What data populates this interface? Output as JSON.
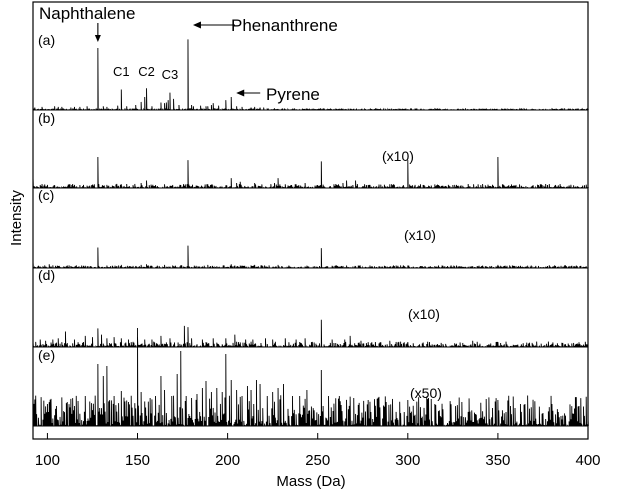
{
  "chart_data": {
    "type": "line",
    "xlabel": "Mass (Da)",
    "ylabel": "Intensity",
    "xlim": [
      92,
      400
    ],
    "x_ticks": [
      100,
      150,
      200,
      250,
      300,
      350,
      400
    ],
    "x_tick_labels": [
      "100",
      "150",
      "200",
      "250",
      "300",
      "350",
      "400"
    ],
    "grid": false,
    "legend": "none",
    "panels": [
      {
        "label": "(a)",
        "scale_label": "",
        "noise": 0.012,
        "peaks": [
          [
            93,
            0.04
          ],
          [
            97,
            0.05
          ],
          [
            104,
            0.06
          ],
          [
            106,
            0.05
          ],
          [
            108,
            0.05
          ],
          [
            113,
            0.04
          ],
          [
            115,
            0.05
          ],
          [
            118,
            0.05
          ],
          [
            122,
            0.06
          ],
          [
            128,
            1.0
          ],
          [
            131,
            0.06
          ],
          [
            133,
            0.05
          ],
          [
            139,
            0.07
          ],
          [
            141,
            0.33
          ],
          [
            144,
            0.06
          ],
          [
            149,
            0.08
          ],
          [
            152,
            0.13
          ],
          [
            154,
            0.21
          ],
          [
            155,
            0.35
          ],
          [
            158,
            0.06
          ],
          [
            163,
            0.12
          ],
          [
            165,
            0.11
          ],
          [
            166,
            0.12
          ],
          [
            167,
            0.16
          ],
          [
            168,
            0.28
          ],
          [
            170,
            0.18
          ],
          [
            173,
            0.08
          ],
          [
            178,
            1.14
          ],
          [
            180,
            0.08
          ],
          [
            181,
            0.06
          ],
          [
            185,
            0.07
          ],
          [
            188,
            0.06
          ],
          [
            189,
            0.06
          ],
          [
            191,
            0.08
          ],
          [
            192,
            0.11
          ],
          [
            195,
            0.07
          ],
          [
            199,
            0.16
          ],
          [
            202,
            0.21
          ],
          [
            205,
            0.06
          ],
          [
            208,
            0.05
          ],
          [
            213,
            0.04
          ],
          [
            215,
            0.05
          ],
          [
            218,
            0.04
          ],
          [
            220,
            0.04
          ]
        ]
      },
      {
        "label": "(b)",
        "scale_label": "(x10)",
        "noise": 0.03,
        "peaks": [
          [
            92,
            0.18
          ],
          [
            100,
            0.05
          ],
          [
            112,
            0.06
          ],
          [
            115,
            0.05
          ],
          [
            120,
            0.05
          ],
          [
            128,
            0.5
          ],
          [
            133,
            0.05
          ],
          [
            141,
            0.06
          ],
          [
            152,
            0.08
          ],
          [
            155,
            0.12
          ],
          [
            165,
            0.06
          ],
          [
            178,
            0.45
          ],
          [
            189,
            0.06
          ],
          [
            202,
            0.16
          ],
          [
            205,
            0.08
          ],
          [
            207,
            0.1
          ],
          [
            215,
            0.08
          ],
          [
            226,
            0.08
          ],
          [
            228,
            0.16
          ],
          [
            232,
            0.06
          ],
          [
            238,
            0.06
          ],
          [
            243,
            0.08
          ],
          [
            252,
            0.43
          ],
          [
            259,
            0.06
          ],
          [
            264,
            0.08
          ],
          [
            266,
            0.12
          ],
          [
            271,
            0.12
          ],
          [
            276,
            0.06
          ],
          [
            279,
            0.05
          ],
          [
            290,
            0.06
          ],
          [
            300,
            0.45
          ],
          [
            313,
            0.04
          ],
          [
            326,
            0.05
          ],
          [
            350,
            0.5
          ]
        ]
      },
      {
        "label": "(c)",
        "scale_label": "(x10)",
        "noise": 0.02,
        "peaks": [
          [
            92,
            0.1
          ],
          [
            101,
            0.06
          ],
          [
            111,
            0.04
          ],
          [
            119,
            0.04
          ],
          [
            128,
            0.33
          ],
          [
            133,
            0.04
          ],
          [
            141,
            0.05
          ],
          [
            152,
            0.05
          ],
          [
            155,
            0.06
          ],
          [
            165,
            0.05
          ],
          [
            178,
            0.36
          ],
          [
            189,
            0.05
          ],
          [
            202,
            0.06
          ],
          [
            207,
            0.04
          ],
          [
            215,
            0.05
          ],
          [
            228,
            0.05
          ],
          [
            234,
            0.04
          ],
          [
            252,
            0.32
          ],
          [
            266,
            0.04
          ],
          [
            279,
            0.04
          ],
          [
            300,
            0.04
          ],
          [
            327,
            0.04
          ],
          [
            350,
            0.05
          ]
        ]
      },
      {
        "label": "(d)",
        "scale_label": "(x10)",
        "noise": 0.04,
        "peaks": [
          [
            92,
            0.08
          ],
          [
            96,
            0.12
          ],
          [
            99,
            0.1
          ],
          [
            103,
            0.12
          ],
          [
            106,
            0.14
          ],
          [
            110,
            0.25
          ],
          [
            115,
            0.12
          ],
          [
            121,
            0.18
          ],
          [
            125,
            0.16
          ],
          [
            128,
            0.3
          ],
          [
            130,
            0.2
          ],
          [
            133,
            0.14
          ],
          [
            137,
            0.16
          ],
          [
            141,
            0.14
          ],
          [
            145,
            0.12
          ],
          [
            150,
            0.16
          ],
          [
            154,
            0.12
          ],
          [
            158,
            0.12
          ],
          [
            163,
            0.18
          ],
          [
            168,
            0.14
          ],
          [
            176,
            0.34
          ],
          [
            178,
            0.32
          ],
          [
            180,
            0.14
          ],
          [
            186,
            0.12
          ],
          [
            192,
            0.14
          ],
          [
            199,
            0.14
          ],
          [
            204,
            0.2
          ],
          [
            210,
            0.12
          ],
          [
            214,
            0.12
          ],
          [
            221,
            0.14
          ],
          [
            225,
            0.12
          ],
          [
            232,
            0.14
          ],
          [
            238,
            0.12
          ],
          [
            243,
            0.14
          ],
          [
            252,
            0.44
          ],
          [
            258,
            0.12
          ],
          [
            265,
            0.12
          ],
          [
            268,
            0.18
          ],
          [
            274,
            0.1
          ],
          [
            282,
            0.08
          ],
          [
            290,
            0.1
          ],
          [
            300,
            0.08
          ],
          [
            312,
            0.08
          ],
          [
            326,
            0.06
          ],
          [
            336,
            0.1
          ],
          [
            350,
            0.08
          ],
          [
            366,
            0.07
          ],
          [
            383,
            0.06
          ]
        ]
      },
      {
        "label": "(e)",
        "scale_label": "(x50)",
        "noise": 0.14,
        "peaks": [
          [
            92,
            0.28
          ],
          [
            100,
            0.22
          ],
          [
            105,
            0.2
          ],
          [
            111,
            0.24
          ],
          [
            117,
            0.25
          ],
          [
            121,
            0.3
          ],
          [
            128,
            0.62
          ],
          [
            131,
            0.5
          ],
          [
            133,
            0.6
          ],
          [
            137,
            0.3
          ],
          [
            141,
            0.35
          ],
          [
            145,
            0.24
          ],
          [
            150,
            0.98
          ],
          [
            152,
            0.34
          ],
          [
            157,
            0.28
          ],
          [
            160,
            0.3
          ],
          [
            163,
            0.5
          ],
          [
            165,
            0.36
          ],
          [
            169,
            0.3
          ],
          [
            172,
            0.52
          ],
          [
            174,
            0.75
          ],
          [
            177,
            0.3
          ],
          [
            180,
            0.28
          ],
          [
            183,
            0.32
          ],
          [
            186,
            0.38
          ],
          [
            188,
            0.45
          ],
          [
            191,
            0.34
          ],
          [
            194,
            0.38
          ],
          [
            197,
            0.34
          ],
          [
            199,
            0.72
          ],
          [
            202,
            0.46
          ],
          [
            205,
            0.36
          ],
          [
            208,
            0.3
          ],
          [
            211,
            0.4
          ],
          [
            213,
            0.36
          ],
          [
            216,
            0.46
          ],
          [
            218,
            0.42
          ],
          [
            222,
            0.3
          ],
          [
            225,
            0.34
          ],
          [
            228,
            0.38
          ],
          [
            231,
            0.42
          ],
          [
            236,
            0.3
          ],
          [
            240,
            0.3
          ],
          [
            244,
            0.36
          ],
          [
            252,
            0.56
          ],
          [
            256,
            0.3
          ],
          [
            262,
            0.3
          ],
          [
            270,
            0.28
          ],
          [
            278,
            0.26
          ],
          [
            288,
            0.24
          ],
          [
            300,
            0.26
          ],
          [
            315,
            0.22
          ],
          [
            330,
            0.24
          ],
          [
            350,
            0.26
          ],
          [
            365,
            0.22
          ],
          [
            380,
            0.22
          ],
          [
            395,
            0.2
          ]
        ]
      }
    ],
    "annotations": [
      {
        "text": "Naphthalene",
        "panel": 0,
        "x": 128
      },
      {
        "text": "Phenanthrene",
        "panel": 0,
        "x": 178
      },
      {
        "text": "Pyrene",
        "panel": 0,
        "x": 202
      },
      {
        "text": "C1",
        "panel": 0,
        "x": 141
      },
      {
        "text": "C2",
        "panel": 0,
        "x": 155
      },
      {
        "text": "C3",
        "panel": 0,
        "x": 168
      }
    ]
  }
}
